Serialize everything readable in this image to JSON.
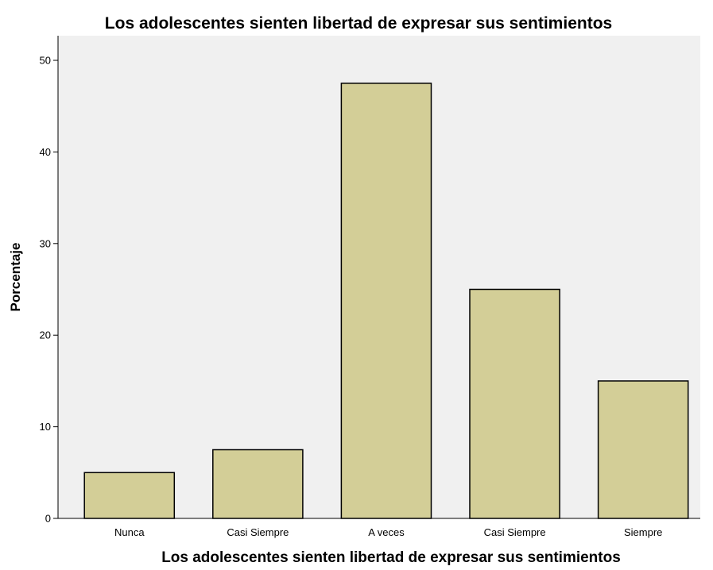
{
  "chart_data": {
    "type": "bar",
    "title": "Los adolescentes sienten libertad de expresar sus sentimientos",
    "xlabel": "Los adolescentes sienten libertad de expresar sus sentimientos",
    "ylabel": "Porcentaje",
    "categories": [
      "Nunca",
      "Casi Siempre",
      "A veces",
      "Casi Siempre",
      "Siempre"
    ],
    "values": [
      5.0,
      7.5,
      47.5,
      25.0,
      15.0
    ],
    "ylim": [
      0,
      52
    ],
    "yticks": [
      0,
      10,
      20,
      30,
      40,
      50
    ],
    "grid": false,
    "colors": {
      "bar_fill": "#d3ce97",
      "bar_stroke": "#000000",
      "plot_background": "#f0f0f0",
      "page_background": "#ffffff"
    }
  }
}
